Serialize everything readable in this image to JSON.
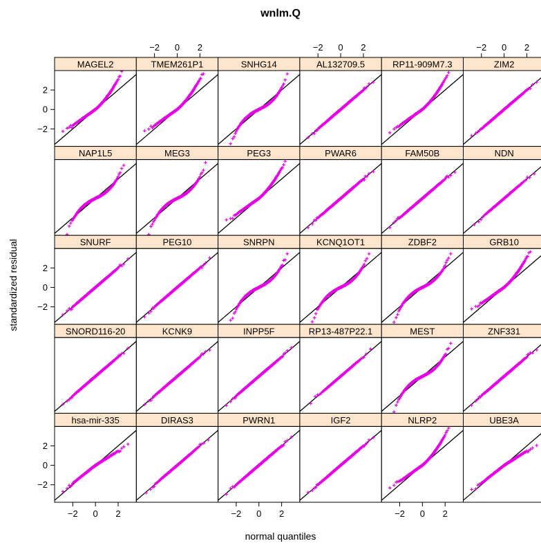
{
  "chart_data": {
    "type": "scatter",
    "subtype": "normal-qq-panels",
    "title": "wnlm.Q",
    "xlabel": "normal quantiles",
    "ylabel": "standardized residual",
    "layout": {
      "columns": 6,
      "rows": 5
    },
    "xlim": [
      -3.6,
      3.6
    ],
    "ylim": [
      -3.8,
      4.0
    ],
    "x_ticks": [
      -2,
      0,
      2
    ],
    "y_ticks": [
      -2,
      0,
      2
    ],
    "x_tick_labels": [
      "−2",
      "0",
      "2"
    ],
    "y_tick_labels": [
      "−2",
      "0",
      "2"
    ],
    "reference_line": {
      "intercept": 0,
      "slope": 1
    },
    "marker": "+",
    "colors": {
      "points": "#e600e6",
      "strip": "#ffe5cc",
      "line": "#000000"
    },
    "panels": [
      {
        "name": "MAGEL2",
        "n": 240,
        "shape": "upper-heavy"
      },
      {
        "name": "TMEM261P1",
        "n": 240,
        "shape": "upper-heavy"
      },
      {
        "name": "SNHG14",
        "n": 240,
        "shape": "s-curve"
      },
      {
        "name": "AL132709.5",
        "n": 240,
        "shape": "near-linear"
      },
      {
        "name": "RP11-909M7.3",
        "n": 240,
        "shape": "upper-heavy"
      },
      {
        "name": "ZIM2",
        "n": 240,
        "shape": "near-linear"
      },
      {
        "name": "NAP1L5",
        "n": 240,
        "shape": "s-curve"
      },
      {
        "name": "MEG3",
        "n": 240,
        "shape": "s-curve"
      },
      {
        "name": "PEG3",
        "n": 240,
        "shape": "upper-heavy"
      },
      {
        "name": "PWAR6",
        "n": 240,
        "shape": "near-linear"
      },
      {
        "name": "FAM50B",
        "n": 240,
        "shape": "near-linear"
      },
      {
        "name": "NDN",
        "n": 120,
        "shape": "near-linear"
      },
      {
        "name": "SNURF",
        "n": 240,
        "shape": "near-linear"
      },
      {
        "name": "PEG10",
        "n": 240,
        "shape": "near-linear"
      },
      {
        "name": "SNRPN",
        "n": 240,
        "shape": "s-curve"
      },
      {
        "name": "KCNQ1OT1",
        "n": 240,
        "shape": "s-curve"
      },
      {
        "name": "ZDBF2",
        "n": 240,
        "shape": "s-curve"
      },
      {
        "name": "GRB10",
        "n": 240,
        "shape": "upper-heavy"
      },
      {
        "name": "SNORD116-20",
        "n": 240,
        "shape": "near-linear"
      },
      {
        "name": "KCNK9",
        "n": 240,
        "shape": "near-linear"
      },
      {
        "name": "INPP5F",
        "n": 240,
        "shape": "near-linear"
      },
      {
        "name": "RP13-487P22.1",
        "n": 120,
        "shape": "near-linear"
      },
      {
        "name": "MEST",
        "n": 240,
        "shape": "s-curve"
      },
      {
        "name": "ZNF331",
        "n": 240,
        "shape": "near-linear"
      },
      {
        "name": "hsa-mir-335",
        "n": 240,
        "shape": "light-tail"
      },
      {
        "name": "DIRAS3",
        "n": 160,
        "shape": "near-linear"
      },
      {
        "name": "PWRN1",
        "n": 240,
        "shape": "near-linear"
      },
      {
        "name": "IGF2",
        "n": 240,
        "shape": "near-linear"
      },
      {
        "name": "NLRP2",
        "n": 240,
        "shape": "upper-heavy"
      },
      {
        "name": "UBE3A",
        "n": 240,
        "shape": "light-tail"
      }
    ]
  }
}
